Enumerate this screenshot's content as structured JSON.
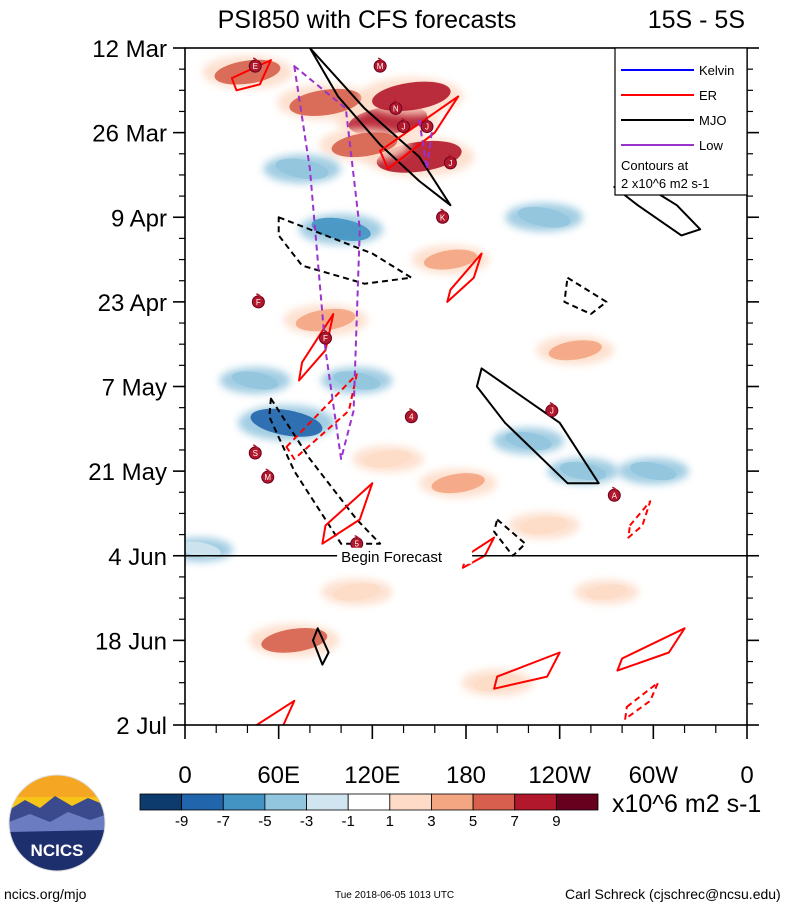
{
  "header": {
    "title": "PSI850 with CFS forecasts",
    "region": "15S - 5S"
  },
  "chart_data": {
    "type": "heatmap",
    "title": "PSI850 with CFS forecasts",
    "subtitle": "15S - 5S",
    "xlabel": "",
    "ylabel": "",
    "x_ticks": [
      "0",
      "60E",
      "120E",
      "180",
      "120W",
      "60W",
      "0"
    ],
    "x_range": [
      0,
      360
    ],
    "y_ticks": [
      "12 Mar",
      "26 Mar",
      "9 Apr",
      "23 Apr",
      "7 May",
      "21 May",
      "4 Jun",
      "18 Jun",
      "2 Jul"
    ],
    "y_range_days": [
      0,
      112
    ],
    "forecast_start": "4 Jun",
    "forecast_label": "Begin Forecast",
    "colorbar": {
      "levels": [
        "-9",
        "-7",
        "-5",
        "-3",
        "-1",
        "1",
        "3",
        "5",
        "7",
        "9"
      ],
      "colors": [
        "#0d3b6e",
        "#2166ac",
        "#4393c3",
        "#92c5de",
        "#d1e5f0",
        "#ffffff",
        "#fddbc7",
        "#f4a582",
        "#d6604d",
        "#b2182b",
        "#67001f"
      ],
      "units": "x10^6 m2 s-1"
    },
    "legend": {
      "position": "top-right",
      "entries": [
        {
          "name": "Kelvin",
          "color": "#0000ff"
        },
        {
          "name": "ER",
          "color": "#ff0000"
        },
        {
          "name": "MJO",
          "color": "#000000"
        },
        {
          "name": "Low",
          "color": "#9933cc"
        }
      ],
      "note_line1": "Contours at",
      "note_line2": "2 x10^6 m2 s-1"
    },
    "anomalies": [
      {
        "lon": 130,
        "day": 12,
        "value": 8
      },
      {
        "lon": 150,
        "day": 18,
        "value": 9
      },
      {
        "lon": 90,
        "day": 9,
        "value": 7
      },
      {
        "lon": 145,
        "day": 8,
        "value": 8
      },
      {
        "lon": 40,
        "day": 4,
        "value": 6
      },
      {
        "lon": 115,
        "day": 16,
        "value": 6
      },
      {
        "lon": 75,
        "day": 20,
        "value": -4
      },
      {
        "lon": 100,
        "day": 30,
        "value": -5
      },
      {
        "lon": 230,
        "day": 28,
        "value": -4
      },
      {
        "lon": 90,
        "day": 45,
        "value": 5
      },
      {
        "lon": 170,
        "day": 35,
        "value": 4
      },
      {
        "lon": 65,
        "day": 62,
        "value": -7
      },
      {
        "lon": 45,
        "day": 55,
        "value": -3
      },
      {
        "lon": 110,
        "day": 55,
        "value": -3
      },
      {
        "lon": 220,
        "day": 65,
        "value": -3
      },
      {
        "lon": 300,
        "day": 70,
        "value": -3
      },
      {
        "lon": 175,
        "day": 72,
        "value": 4
      },
      {
        "lon": 250,
        "day": 50,
        "value": 4
      },
      {
        "lon": 130,
        "day": 68,
        "value": 3
      },
      {
        "lon": 70,
        "day": 98,
        "value": 6
      },
      {
        "lon": 200,
        "day": 105,
        "value": 3
      },
      {
        "lon": 230,
        "day": 79,
        "value": 3
      },
      {
        "lon": 255,
        "day": 70,
        "value": -3
      },
      {
        "lon": 10,
        "day": 83,
        "value": -2
      },
      {
        "lon": 270,
        "day": 90,
        "value": 2
      },
      {
        "lon": 110,
        "day": 90,
        "value": 3
      }
    ],
    "contours": [
      {
        "type": "MJO",
        "style": "solid",
        "path": [
          [
            80,
            0
          ],
          [
            115,
            10
          ],
          [
            150,
            18
          ],
          [
            170,
            26
          ],
          [
            150,
            22
          ],
          [
            125,
            16
          ],
          [
            98,
            8
          ]
        ]
      },
      {
        "type": "MJO",
        "style": "solid",
        "path": [
          [
            290,
            22
          ],
          [
            315,
            26
          ],
          [
            330,
            30
          ],
          [
            318,
            31
          ],
          [
            290,
            26
          ],
          [
            275,
            23
          ]
        ]
      },
      {
        "type": "MJO",
        "style": "dashed",
        "path": [
          [
            60,
            28
          ],
          [
            120,
            34
          ],
          [
            145,
            38
          ],
          [
            115,
            39
          ],
          [
            75,
            36
          ],
          [
            60,
            31
          ]
        ]
      },
      {
        "type": "MJO",
        "style": "dashed",
        "path": [
          [
            245,
            38
          ],
          [
            270,
            42
          ],
          [
            260,
            44
          ],
          [
            243,
            42
          ]
        ]
      },
      {
        "type": "MJO",
        "style": "solid",
        "path": [
          [
            190,
            53
          ],
          [
            240,
            62
          ],
          [
            265,
            72
          ],
          [
            245,
            72
          ],
          [
            205,
            62
          ],
          [
            187,
            56
          ]
        ]
      },
      {
        "type": "MJO",
        "style": "dashed",
        "path": [
          [
            55,
            58
          ],
          [
            80,
            68
          ],
          [
            110,
            78
          ],
          [
            125,
            82
          ],
          [
            100,
            82
          ],
          [
            70,
            70
          ],
          [
            54,
            61
          ]
        ]
      },
      {
        "type": "MJO",
        "style": "dashed",
        "path": [
          [
            200,
            78
          ],
          [
            218,
            82
          ],
          [
            210,
            84
          ],
          [
            198,
            80
          ]
        ]
      },
      {
        "type": "MJO",
        "style": "solid",
        "path": [
          [
            85,
            96
          ],
          [
            92,
            100
          ],
          [
            88,
            102
          ],
          [
            82,
            98
          ]
        ]
      },
      {
        "type": "ER",
        "style": "solid",
        "path": [
          [
            30,
            5
          ],
          [
            55,
            2
          ],
          [
            48,
            6
          ],
          [
            33,
            7
          ]
        ]
      },
      {
        "type": "ER",
        "style": "solid",
        "path": [
          [
            125,
            17
          ],
          [
            175,
            8
          ],
          [
            160,
            14
          ],
          [
            130,
            20
          ]
        ]
      },
      {
        "type": "ER",
        "style": "solid",
        "path": [
          [
            170,
            40
          ],
          [
            190,
            34
          ],
          [
            185,
            38
          ],
          [
            168,
            42
          ]
        ]
      },
      {
        "type": "ER",
        "style": "solid",
        "path": [
          [
            75,
            52
          ],
          [
            95,
            44
          ],
          [
            90,
            50
          ],
          [
            73,
            55
          ]
        ]
      },
      {
        "type": "ER",
        "style": "dashed",
        "path": [
          [
            65,
            66
          ],
          [
            110,
            54
          ],
          [
            105,
            60
          ],
          [
            70,
            68
          ]
        ]
      },
      {
        "type": "ER",
        "style": "solid",
        "path": [
          [
            90,
            79
          ],
          [
            120,
            72
          ],
          [
            112,
            78
          ],
          [
            88,
            82
          ]
        ]
      },
      {
        "type": "ER",
        "style": "solid",
        "path": [
          [
            180,
            84
          ],
          [
            198,
            81
          ],
          [
            192,
            84
          ],
          [
            178,
            86
          ]
        ]
      },
      {
        "type": "ER",
        "style": "dashed",
        "path": [
          [
            285,
            79
          ],
          [
            298,
            75
          ],
          [
            293,
            79
          ],
          [
            284,
            81
          ]
        ]
      },
      {
        "type": "ER",
        "style": "solid",
        "path": [
          [
            280,
            101
          ],
          [
            320,
            96
          ],
          [
            310,
            100
          ],
          [
            277,
            103
          ]
        ]
      },
      {
        "type": "ER",
        "style": "solid",
        "path": [
          [
            200,
            104
          ],
          [
            240,
            100
          ],
          [
            232,
            104
          ],
          [
            198,
            106
          ]
        ]
      },
      {
        "type": "ER",
        "style": "dashed",
        "path": [
          [
            283,
            109
          ],
          [
            303,
            105
          ],
          [
            298,
            108
          ],
          [
            282,
            111
          ]
        ]
      },
      {
        "type": "ER",
        "style": "solid",
        "path": [
          [
            40,
            113
          ],
          [
            70,
            108
          ],
          [
            63,
            112
          ],
          [
            38,
            115
          ]
        ]
      },
      {
        "type": "Low",
        "style": "dashed",
        "path": [
          [
            70,
            3
          ],
          [
            80,
            20
          ],
          [
            90,
            50
          ],
          [
            100,
            68
          ],
          [
            108,
            60
          ],
          [
            112,
            30
          ],
          [
            103,
            10
          ]
        ]
      },
      {
        "type": "Low",
        "style": "dashed",
        "path": [
          [
            150,
            12
          ],
          [
            155,
            20
          ],
          [
            158,
            14
          ]
        ]
      }
    ],
    "storms": [
      {
        "label": "E",
        "lon": 45,
        "day": 3
      },
      {
        "label": "M",
        "lon": 125,
        "day": 3
      },
      {
        "label": "N",
        "lon": 135,
        "day": 10
      },
      {
        "label": "J",
        "lon": 140,
        "day": 13
      },
      {
        "label": "J",
        "lon": 155,
        "day": 13
      },
      {
        "label": "J",
        "lon": 170,
        "day": 19
      },
      {
        "label": "K",
        "lon": 165,
        "day": 28
      },
      {
        "label": "F",
        "lon": 47,
        "day": 42
      },
      {
        "label": "F",
        "lon": 90,
        "day": 48
      },
      {
        "label": "4",
        "lon": 145,
        "day": 61
      },
      {
        "label": "J",
        "lon": 235,
        "day": 60
      },
      {
        "label": "S",
        "lon": 45,
        "day": 67
      },
      {
        "label": "M",
        "lon": 53,
        "day": 71
      },
      {
        "label": "A",
        "lon": 275,
        "day": 74
      },
      {
        "label": "5",
        "lon": 110,
        "day": 82
      }
    ]
  },
  "logo": {
    "text": "NCICS"
  },
  "footer": {
    "left": "ncics.org/mjo",
    "center": "Tue 2018-06-05 1013 UTC",
    "right": "Carl Schreck (cjschrec@ncsu.edu)"
  }
}
